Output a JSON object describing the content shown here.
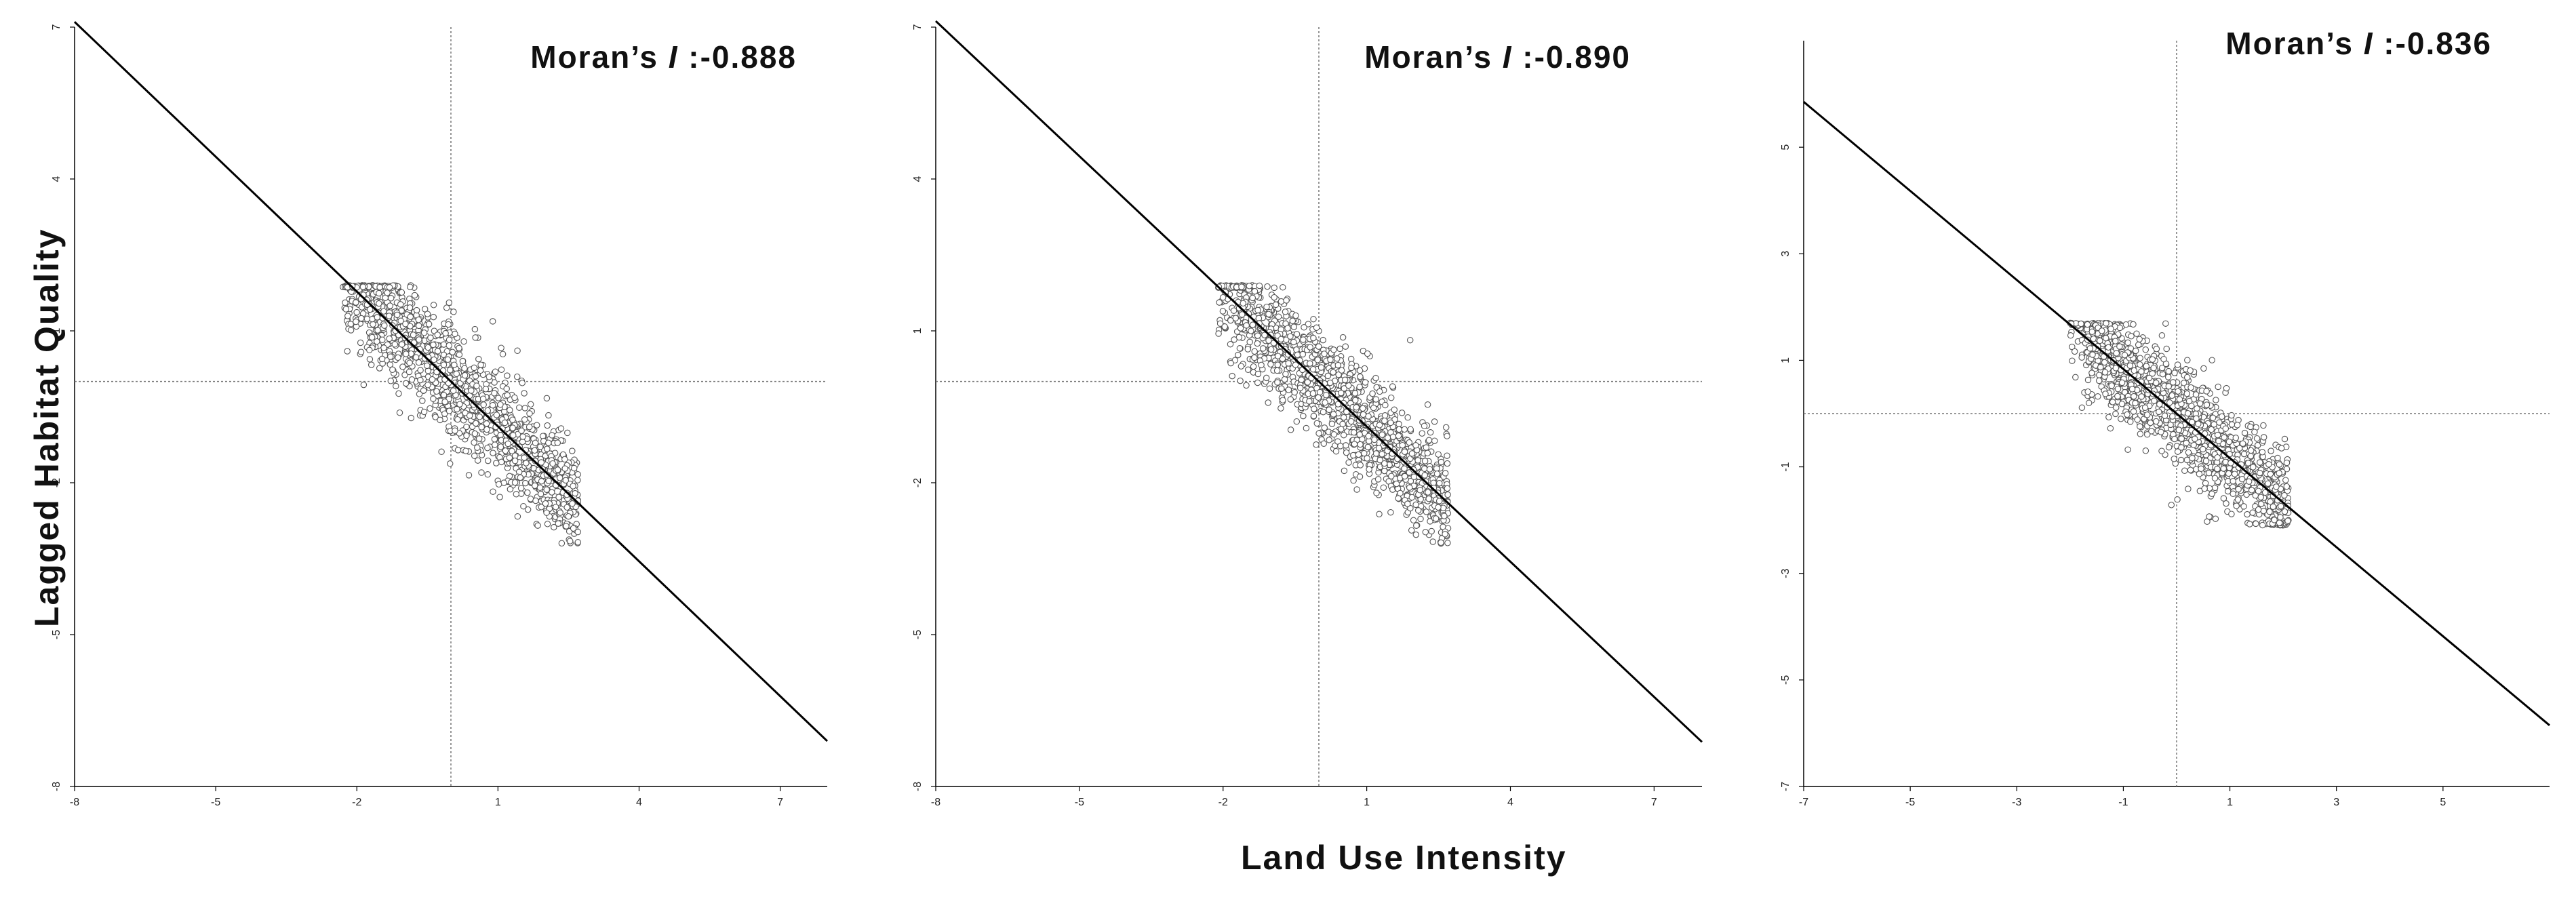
{
  "ylabel": "Lagged Habitat Quality",
  "xlabel": "Land Use Intensity",
  "chart_data": [
    {
      "type": "scatter",
      "annotation_prefix": "Moran’s ",
      "annotation_italic": "I",
      "annotation_value": " :-0.888",
      "xlim": [
        -8,
        8
      ],
      "ylim": [
        -8,
        7
      ],
      "xticks": [
        -8,
        -5,
        -2,
        1,
        4,
        7
      ],
      "yticks": [
        -8,
        -5,
        -2,
        1,
        4,
        7
      ],
      "mean_x": 0,
      "mean_y": 0,
      "slope": -0.888,
      "cluster": {
        "x_min": -1.9,
        "x_max": 2.7,
        "y_top": 1.9,
        "y_bottom": -3.2,
        "scatter_x": 0.65,
        "scatter_y": 0.55
      }
    },
    {
      "type": "scatter",
      "annotation_prefix": "Moran’s ",
      "annotation_italic": "I",
      "annotation_value": " :-0.890",
      "xlim": [
        -8,
        8
      ],
      "ylim": [
        -8,
        7
      ],
      "xticks": [
        -8,
        -5,
        -2,
        1,
        4,
        7
      ],
      "yticks": [
        -8,
        -5,
        -2,
        1,
        4,
        7
      ],
      "mean_x": 0,
      "mean_y": 0,
      "slope": -0.89,
      "cluster": {
        "x_min": -1.7,
        "x_max": 2.7,
        "y_top": 1.9,
        "y_bottom": -3.2,
        "scatter_x": 0.65,
        "scatter_y": 0.55
      }
    },
    {
      "type": "scatter",
      "annotation_prefix": "Moran’s ",
      "annotation_italic": "I",
      "annotation_value": " :-0.836",
      "xlim": [
        -7,
        7
      ],
      "ylim": [
        -7,
        7
      ],
      "xticks": [
        -7,
        -5,
        -3,
        -1,
        1,
        3,
        5
      ],
      "yticks": [
        -7,
        -5,
        -3,
        -1,
        1,
        3,
        5
      ],
      "mean_x": 0,
      "mean_y": 0,
      "slope": -0.836,
      "cluster": {
        "x_min": -1.6,
        "x_max": 2.1,
        "y_top": 1.7,
        "y_bottom": -2.1,
        "scatter_x": 0.6,
        "scatter_y": 0.5
      }
    }
  ]
}
